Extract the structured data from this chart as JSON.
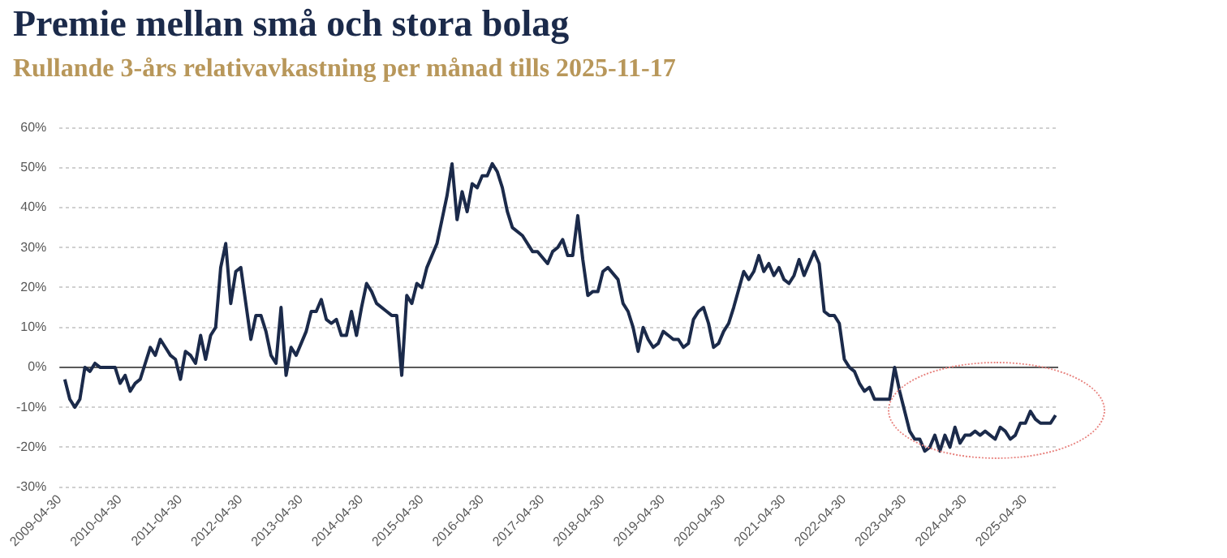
{
  "chart_data": {
    "type": "line",
    "title": "Premie mellan små och stora bolag",
    "subtitle": "Rullande 3-års relativavkastning per månad tills 2025-11-17",
    "x": [
      "2009-06",
      "2009-07",
      "2009-08",
      "2009-09",
      "2009-10",
      "2009-11",
      "2009-12",
      "2010-01",
      "2010-03",
      "2010-04",
      "2010-05",
      "2010-06",
      "2010-07",
      "2010-08",
      "2010-09",
      "2010-10",
      "2010-11",
      "2010-12",
      "2011-01",
      "2011-02",
      "2011-03",
      "2011-04",
      "2011-05",
      "2011-06",
      "2011-07",
      "2011-08",
      "2011-09",
      "2011-10",
      "2011-11",
      "2011-12",
      "2012-01",
      "2012-02",
      "2012-03",
      "2012-04",
      "2012-05",
      "2012-06",
      "2012-07",
      "2012-08",
      "2012-09",
      "2012-10",
      "2012-11",
      "2012-12",
      "2013-01",
      "2013-02",
      "2013-03",
      "2013-04",
      "2013-05",
      "2013-06",
      "2013-07",
      "2013-08",
      "2013-09",
      "2013-10",
      "2013-11",
      "2013-12",
      "2014-01",
      "2014-02",
      "2014-03",
      "2014-04",
      "2014-05",
      "2014-06",
      "2014-07",
      "2014-08",
      "2014-10",
      "2014-11",
      "2014-12",
      "2015-01",
      "2015-02",
      "2015-03",
      "2015-04",
      "2015-05",
      "2015-06",
      "2015-08",
      "2015-09",
      "2015-10",
      "2015-11",
      "2015-12",
      "2016-01",
      "2016-02",
      "2016-03",
      "2016-04",
      "2016-05",
      "2016-06",
      "2016-07",
      "2016-08",
      "2016-09",
      "2016-10",
      "2016-11",
      "2017-01",
      "2017-03",
      "2017-04",
      "2017-06",
      "2017-07",
      "2017-08",
      "2017-09",
      "2017-10",
      "2017-11",
      "2017-12",
      "2018-01",
      "2018-02",
      "2018-03",
      "2018-04",
      "2018-05",
      "2018-06",
      "2018-08",
      "2018-09",
      "2018-10",
      "2018-11",
      "2018-12",
      "2019-01",
      "2019-02",
      "2019-03",
      "2019-04",
      "2019-05",
      "2019-06",
      "2019-07",
      "2019-08",
      "2019-09",
      "2019-10",
      "2019-11",
      "2019-12",
      "2020-01",
      "2020-02",
      "2020-03",
      "2020-04",
      "2020-05",
      "2020-06",
      "2020-07",
      "2020-09",
      "2020-10",
      "2020-11",
      "2020-12",
      "2021-01",
      "2021-02",
      "2021-03",
      "2021-04",
      "2021-05",
      "2021-06",
      "2021-07",
      "2021-08",
      "2021-09",
      "2021-10",
      "2021-11",
      "2021-12",
      "2022-01",
      "2022-02",
      "2022-03",
      "2022-04",
      "2022-05",
      "2022-06",
      "2022-07",
      "2022-08",
      "2022-09",
      "2022-10",
      "2022-11",
      "2022-12",
      "2023-02",
      "2023-03",
      "2023-04",
      "2023-05",
      "2023-06",
      "2023-07",
      "2023-08",
      "2023-09",
      "2023-10",
      "2023-11",
      "2023-12",
      "2024-01",
      "2024-02",
      "2024-03",
      "2024-04",
      "2024-05",
      "2024-06",
      "2024-07",
      "2024-08",
      "2024-09",
      "2024-10",
      "2024-11",
      "2024-12",
      "2025-01",
      "2025-02",
      "2025-03",
      "2025-04",
      "2025-05",
      "2025-06",
      "2025-07",
      "2025-08",
      "2025-09",
      "2025-10",
      "2025-11"
    ],
    "series": [
      {
        "color": "#1b2a4a",
        "values": [
          -3,
          -8,
          -10,
          -8,
          0,
          -1,
          1,
          0,
          0,
          0,
          -4,
          -2,
          -6,
          -4,
          -3,
          1,
          5,
          3,
          7,
          5,
          3,
          2,
          -3,
          4,
          3,
          1,
          8,
          2,
          8,
          10,
          25,
          31,
          16,
          24,
          25,
          16,
          7,
          13,
          13,
          9,
          3,
          1,
          15,
          -2,
          5,
          3,
          6,
          9,
          14,
          14,
          17,
          12,
          11,
          12,
          8,
          8,
          14,
          8,
          15,
          21,
          19,
          16,
          14,
          13,
          13,
          -2,
          18,
          16,
          21,
          20,
          25,
          31,
          37,
          43,
          51,
          37,
          44,
          39,
          46,
          45,
          48,
          48,
          51,
          49,
          45,
          39,
          35,
          33,
          29,
          29,
          26,
          29,
          30,
          32,
          28,
          28,
          38,
          27,
          18,
          19,
          19,
          24,
          25,
          22,
          16,
          14,
          10,
          4,
          10,
          7,
          5,
          6,
          9,
          8,
          7,
          7,
          5,
          6,
          12,
          14,
          15,
          11,
          5,
          6,
          9,
          11,
          15,
          24,
          22,
          24,
          28,
          24,
          26,
          23,
          25,
          22,
          21,
          23,
          27,
          23,
          26,
          29,
          26,
          14,
          13,
          13,
          11,
          2,
          0,
          -1,
          -4,
          -6,
          -5,
          -8,
          -8,
          -8,
          0,
          -6,
          -11,
          -16,
          -18,
          -18,
          -21,
          -20,
          -17,
          -21,
          -17,
          -20,
          -15,
          -19,
          -17,
          -17,
          -16,
          -17,
          -16,
          -17,
          -18,
          -15,
          -16,
          -18,
          -17,
          -14,
          -14,
          -11,
          -13,
          -14,
          -14,
          -14,
          -12
        ]
      }
    ],
    "xlim": [
      "2009-04-30",
      "2025-11-17"
    ],
    "xticks": [
      "2009-04-30",
      "2010-04-30",
      "2011-04-30",
      "2012-04-30",
      "2013-04-30",
      "2014-04-30",
      "2015-04-30",
      "2016-04-30",
      "2017-04-30",
      "2018-04-30",
      "2019-04-30",
      "2020-04-30",
      "2021-04-30",
      "2022-04-30",
      "2023-04-30",
      "2024-04-30",
      "2025-04-30"
    ],
    "ylim": [
      -30,
      60
    ],
    "yticks": [
      {
        "value": -30,
        "label": "-30%"
      },
      {
        "value": -20,
        "label": "-20%"
      },
      {
        "value": -10,
        "label": "-10%"
      },
      {
        "value": 0,
        "label": "0%"
      },
      {
        "value": 10,
        "label": "10%"
      },
      {
        "value": 20,
        "label": "20%"
      },
      {
        "value": 30,
        "label": "30%"
      },
      {
        "value": 40,
        "label": "40%"
      },
      {
        "value": 50,
        "label": "50%"
      },
      {
        "value": 60,
        "label": "60%"
      }
    ],
    "grid": "y",
    "legend": false,
    "marker": "none",
    "line_style": "solid",
    "ref_lines": [
      {
        "axis": "y",
        "value": 0,
        "color": "#595959"
      }
    ]
  }
}
